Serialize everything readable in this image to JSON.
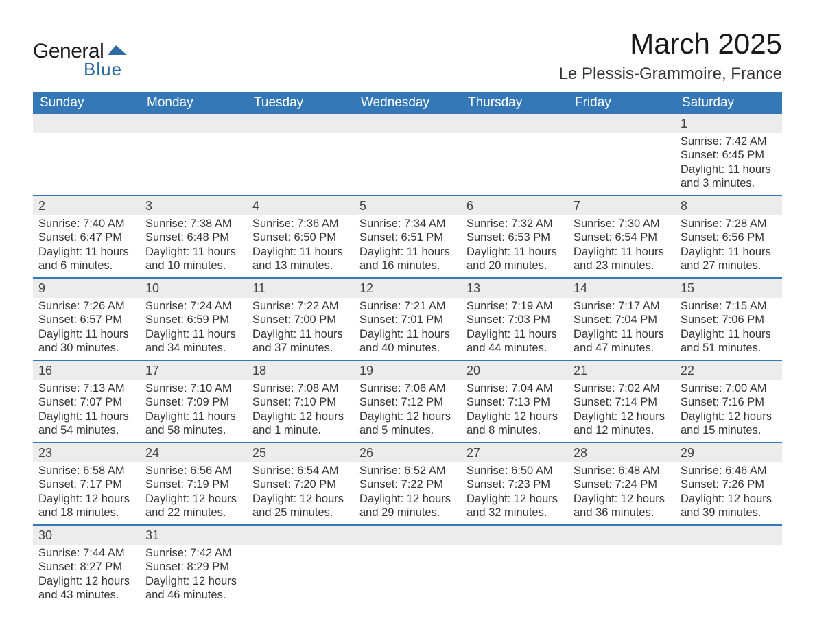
{
  "logo": {
    "word1": "General",
    "word2": "Blue",
    "word1_color": "#1a1a1a",
    "word2_color": "#2d6ca2",
    "shape_color": "#2d6ca2"
  },
  "title": {
    "month": "March 2025",
    "location": "Le Plessis-Grammoire, France",
    "month_fontsize": 42,
    "location_fontsize": 24,
    "text_color": "#1a1a1a"
  },
  "colors": {
    "header_bg": "#3478b8",
    "header_text": "#ffffff",
    "daynum_bg": "#ececec",
    "row_divider": "#3478b8",
    "body_text": "#333333",
    "page_bg": "#ffffff"
  },
  "columns": [
    "Sunday",
    "Monday",
    "Tuesday",
    "Wednesday",
    "Thursday",
    "Friday",
    "Saturday"
  ],
  "first_day_column": 6,
  "weeks": [
    [
      null,
      null,
      null,
      null,
      null,
      null,
      {
        "n": "1",
        "sunrise": "Sunrise: 7:42 AM",
        "sunset": "Sunset: 6:45 PM",
        "dl1": "Daylight: 11 hours",
        "dl2": "and 3 minutes."
      }
    ],
    [
      {
        "n": "2",
        "sunrise": "Sunrise: 7:40 AM",
        "sunset": "Sunset: 6:47 PM",
        "dl1": "Daylight: 11 hours",
        "dl2": "and 6 minutes."
      },
      {
        "n": "3",
        "sunrise": "Sunrise: 7:38 AM",
        "sunset": "Sunset: 6:48 PM",
        "dl1": "Daylight: 11 hours",
        "dl2": "and 10 minutes."
      },
      {
        "n": "4",
        "sunrise": "Sunrise: 7:36 AM",
        "sunset": "Sunset: 6:50 PM",
        "dl1": "Daylight: 11 hours",
        "dl2": "and 13 minutes."
      },
      {
        "n": "5",
        "sunrise": "Sunrise: 7:34 AM",
        "sunset": "Sunset: 6:51 PM",
        "dl1": "Daylight: 11 hours",
        "dl2": "and 16 minutes."
      },
      {
        "n": "6",
        "sunrise": "Sunrise: 7:32 AM",
        "sunset": "Sunset: 6:53 PM",
        "dl1": "Daylight: 11 hours",
        "dl2": "and 20 minutes."
      },
      {
        "n": "7",
        "sunrise": "Sunrise: 7:30 AM",
        "sunset": "Sunset: 6:54 PM",
        "dl1": "Daylight: 11 hours",
        "dl2": "and 23 minutes."
      },
      {
        "n": "8",
        "sunrise": "Sunrise: 7:28 AM",
        "sunset": "Sunset: 6:56 PM",
        "dl1": "Daylight: 11 hours",
        "dl2": "and 27 minutes."
      }
    ],
    [
      {
        "n": "9",
        "sunrise": "Sunrise: 7:26 AM",
        "sunset": "Sunset: 6:57 PM",
        "dl1": "Daylight: 11 hours",
        "dl2": "and 30 minutes."
      },
      {
        "n": "10",
        "sunrise": "Sunrise: 7:24 AM",
        "sunset": "Sunset: 6:59 PM",
        "dl1": "Daylight: 11 hours",
        "dl2": "and 34 minutes."
      },
      {
        "n": "11",
        "sunrise": "Sunrise: 7:22 AM",
        "sunset": "Sunset: 7:00 PM",
        "dl1": "Daylight: 11 hours",
        "dl2": "and 37 minutes."
      },
      {
        "n": "12",
        "sunrise": "Sunrise: 7:21 AM",
        "sunset": "Sunset: 7:01 PM",
        "dl1": "Daylight: 11 hours",
        "dl2": "and 40 minutes."
      },
      {
        "n": "13",
        "sunrise": "Sunrise: 7:19 AM",
        "sunset": "Sunset: 7:03 PM",
        "dl1": "Daylight: 11 hours",
        "dl2": "and 44 minutes."
      },
      {
        "n": "14",
        "sunrise": "Sunrise: 7:17 AM",
        "sunset": "Sunset: 7:04 PM",
        "dl1": "Daylight: 11 hours",
        "dl2": "and 47 minutes."
      },
      {
        "n": "15",
        "sunrise": "Sunrise: 7:15 AM",
        "sunset": "Sunset: 7:06 PM",
        "dl1": "Daylight: 11 hours",
        "dl2": "and 51 minutes."
      }
    ],
    [
      {
        "n": "16",
        "sunrise": "Sunrise: 7:13 AM",
        "sunset": "Sunset: 7:07 PM",
        "dl1": "Daylight: 11 hours",
        "dl2": "and 54 minutes."
      },
      {
        "n": "17",
        "sunrise": "Sunrise: 7:10 AM",
        "sunset": "Sunset: 7:09 PM",
        "dl1": "Daylight: 11 hours",
        "dl2": "and 58 minutes."
      },
      {
        "n": "18",
        "sunrise": "Sunrise: 7:08 AM",
        "sunset": "Sunset: 7:10 PM",
        "dl1": "Daylight: 12 hours",
        "dl2": "and 1 minute."
      },
      {
        "n": "19",
        "sunrise": "Sunrise: 7:06 AM",
        "sunset": "Sunset: 7:12 PM",
        "dl1": "Daylight: 12 hours",
        "dl2": "and 5 minutes."
      },
      {
        "n": "20",
        "sunrise": "Sunrise: 7:04 AM",
        "sunset": "Sunset: 7:13 PM",
        "dl1": "Daylight: 12 hours",
        "dl2": "and 8 minutes."
      },
      {
        "n": "21",
        "sunrise": "Sunrise: 7:02 AM",
        "sunset": "Sunset: 7:14 PM",
        "dl1": "Daylight: 12 hours",
        "dl2": "and 12 minutes."
      },
      {
        "n": "22",
        "sunrise": "Sunrise: 7:00 AM",
        "sunset": "Sunset: 7:16 PM",
        "dl1": "Daylight: 12 hours",
        "dl2": "and 15 minutes."
      }
    ],
    [
      {
        "n": "23",
        "sunrise": "Sunrise: 6:58 AM",
        "sunset": "Sunset: 7:17 PM",
        "dl1": "Daylight: 12 hours",
        "dl2": "and 18 minutes."
      },
      {
        "n": "24",
        "sunrise": "Sunrise: 6:56 AM",
        "sunset": "Sunset: 7:19 PM",
        "dl1": "Daylight: 12 hours",
        "dl2": "and 22 minutes."
      },
      {
        "n": "25",
        "sunrise": "Sunrise: 6:54 AM",
        "sunset": "Sunset: 7:20 PM",
        "dl1": "Daylight: 12 hours",
        "dl2": "and 25 minutes."
      },
      {
        "n": "26",
        "sunrise": "Sunrise: 6:52 AM",
        "sunset": "Sunset: 7:22 PM",
        "dl1": "Daylight: 12 hours",
        "dl2": "and 29 minutes."
      },
      {
        "n": "27",
        "sunrise": "Sunrise: 6:50 AM",
        "sunset": "Sunset: 7:23 PM",
        "dl1": "Daylight: 12 hours",
        "dl2": "and 32 minutes."
      },
      {
        "n": "28",
        "sunrise": "Sunrise: 6:48 AM",
        "sunset": "Sunset: 7:24 PM",
        "dl1": "Daylight: 12 hours",
        "dl2": "and 36 minutes."
      },
      {
        "n": "29",
        "sunrise": "Sunrise: 6:46 AM",
        "sunset": "Sunset: 7:26 PM",
        "dl1": "Daylight: 12 hours",
        "dl2": "and 39 minutes."
      }
    ],
    [
      {
        "n": "30",
        "sunrise": "Sunrise: 7:44 AM",
        "sunset": "Sunset: 8:27 PM",
        "dl1": "Daylight: 12 hours",
        "dl2": "and 43 minutes."
      },
      {
        "n": "31",
        "sunrise": "Sunrise: 7:42 AM",
        "sunset": "Sunset: 8:29 PM",
        "dl1": "Daylight: 12 hours",
        "dl2": "and 46 minutes."
      },
      null,
      null,
      null,
      null,
      null
    ]
  ]
}
